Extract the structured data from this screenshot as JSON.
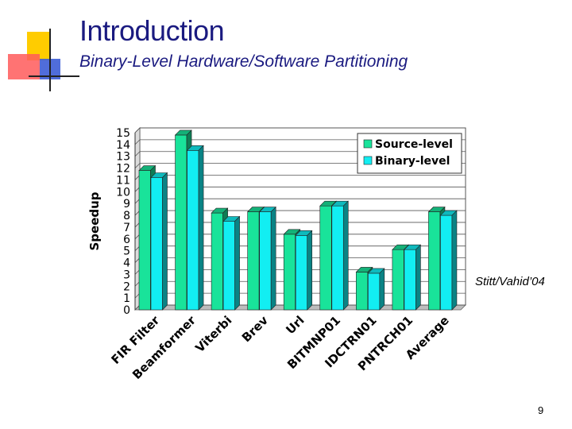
{
  "slide": {
    "title": "Introduction",
    "subtitle": "Binary-Level Hardware/Software Partitioning",
    "citation": "Stitt/Vahid’04",
    "page_number": "9"
  },
  "colors": {
    "title": "#1a1a80",
    "source_bar": "#19e39a",
    "binary_bar": "#12eef2",
    "deco_yellow": "#ffcc00",
    "deco_red": "#ff5a5a",
    "deco_blue": "#3d5dd6"
  },
  "chart_data": {
    "type": "bar",
    "title": "",
    "xlabel": "",
    "ylabel": "Speedup",
    "ylim": [
      0,
      15
    ],
    "yticks": [
      0,
      1,
      2,
      3,
      4,
      5,
      6,
      7,
      8,
      9,
      10,
      11,
      12,
      13,
      14,
      15
    ],
    "grid": true,
    "legend_position": "top-right",
    "categories": [
      "FIR Filter",
      "Beamformer",
      "Viterbi",
      "Brev",
      "Url",
      "BITMNP01",
      "IDCTRN01",
      "PNTRCH01",
      "Average"
    ],
    "series": [
      {
        "name": "Source-level",
        "values": [
          11.8,
          14.8,
          8.2,
          8.3,
          6.4,
          8.8,
          3.2,
          5.1,
          8.3
        ]
      },
      {
        "name": "Binary-level",
        "values": [
          11.2,
          13.5,
          7.5,
          8.3,
          6.3,
          8.8,
          3.1,
          5.1,
          8.0
        ]
      }
    ]
  }
}
